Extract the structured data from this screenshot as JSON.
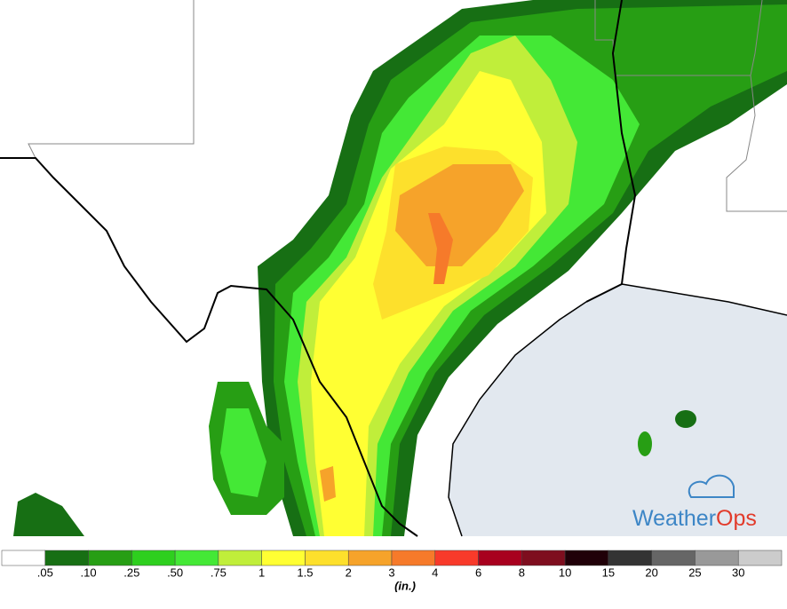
{
  "logo": {
    "part1": "Weather",
    "part2": "Ops"
  },
  "legend": {
    "labels": [
      ".05",
      ".10",
      ".25",
      ".50",
      ".75",
      "1",
      "1.5",
      "2",
      "3",
      "4",
      "6",
      "8",
      "10",
      "15",
      "20",
      "25",
      "30"
    ],
    "unit": "(in.)",
    "colors": [
      "#ffffff",
      "#176f14",
      "#279e14",
      "#2ecf1e",
      "#44e836",
      "#c0ee3a",
      "#ffff33",
      "#fde02c",
      "#f6a32a",
      "#f67a2a",
      "#f83a2a",
      "#a8001e",
      "#7e0e1e",
      "#200008",
      "#333333",
      "#666666",
      "#999999",
      "#cccccc"
    ]
  }
}
